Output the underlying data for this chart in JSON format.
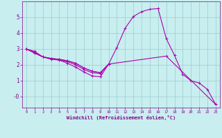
{
  "xlabel": "Windchill (Refroidissement éolien,°C)",
  "background_color": "#c8eef0",
  "line_color": "#aa00aa",
  "marker": "+",
  "markersize": 3,
  "linewidth": 0.8,
  "xlim": [
    -0.5,
    23.5
  ],
  "ylim": [
    -0.7,
    6.0
  ],
  "yticks": [
    0,
    1,
    2,
    3,
    4,
    5
  ],
  "xticks": [
    0,
    1,
    2,
    3,
    4,
    5,
    6,
    7,
    8,
    9,
    10,
    11,
    12,
    13,
    14,
    15,
    16,
    17,
    18,
    19,
    20,
    21,
    22,
    23
  ],
  "grid_color": "#99cccc",
  "lines": [
    {
      "x": [
        0,
        1,
        2,
        3,
        4,
        5,
        6,
        7,
        8,
        9,
        10,
        11,
        12,
        13,
        14,
        15,
        16,
        17,
        18,
        19,
        20,
        21,
        22,
        23
      ],
      "y": [
        3.0,
        2.85,
        2.5,
        2.4,
        2.3,
        2.1,
        1.85,
        1.55,
        1.3,
        1.25,
        2.05,
        3.1,
        4.3,
        5.05,
        5.35,
        5.5,
        5.55,
        3.65,
        2.6,
        1.4,
        1.0,
        0.85,
        0.45,
        -0.5
      ]
    },
    {
      "x": [
        0,
        1,
        2,
        3,
        4,
        5,
        6,
        7,
        8,
        9,
        10
      ],
      "y": [
        3.0,
        2.8,
        2.5,
        2.35,
        2.3,
        2.2,
        2.0,
        1.7,
        1.5,
        1.45,
        2.05
      ]
    },
    {
      "x": [
        0,
        1,
        2,
        3,
        4,
        5,
        6,
        7,
        8,
        9,
        10
      ],
      "y": [
        3.0,
        2.75,
        2.5,
        2.4,
        2.35,
        2.25,
        2.1,
        1.8,
        1.6,
        1.5,
        2.05
      ]
    },
    {
      "x": [
        0,
        1,
        2,
        3,
        4,
        5,
        6,
        7,
        8,
        9,
        10,
        17,
        23
      ],
      "y": [
        3.0,
        2.75,
        2.5,
        2.4,
        2.35,
        2.25,
        2.1,
        1.8,
        1.6,
        1.5,
        2.05,
        2.55,
        -0.5
      ]
    }
  ],
  "yticklabels": [
    "-0",
    "1",
    "2",
    "3",
    "4",
    "5"
  ]
}
